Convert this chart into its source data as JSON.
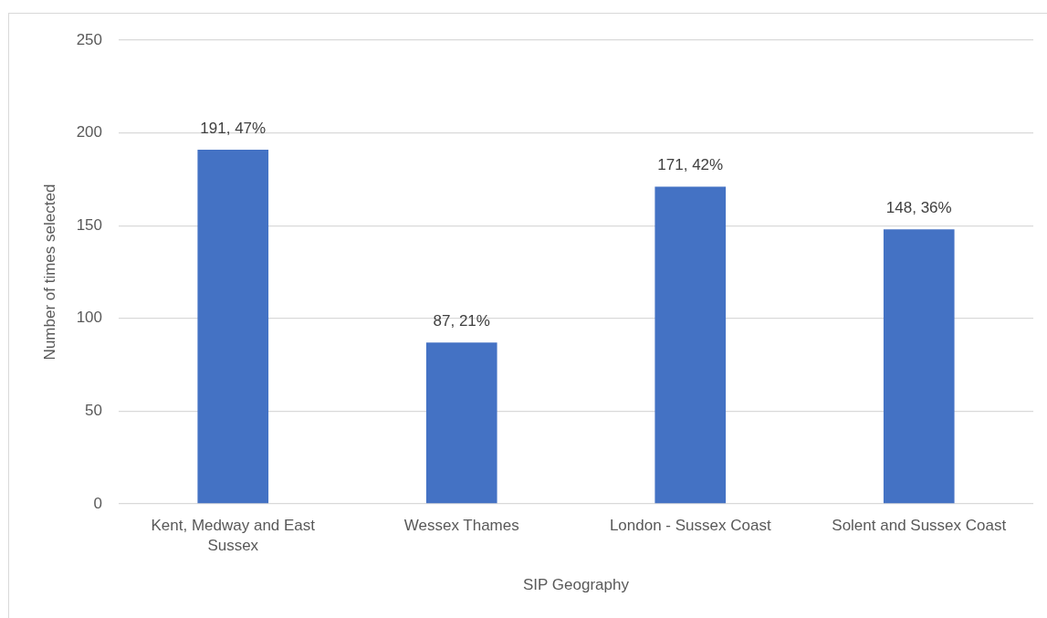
{
  "chart_data": {
    "type": "bar",
    "xlabel": "SIP Geography",
    "ylabel": "Number of times selected",
    "categories": [
      "Kent, Medway and East Sussex",
      "Wessex Thames",
      "London - Sussex Coast",
      "Solent and Sussex Coast"
    ],
    "values": [
      191,
      87,
      171,
      148
    ],
    "color": "#4472c4",
    "value_labels": [
      "191, 47%",
      "87, 21%",
      "171, 42%",
      "148, 36%"
    ],
    "ylim": [
      0,
      250
    ],
    "yticks": [
      0,
      50,
      100,
      150,
      200,
      250
    ],
    "grid": "y"
  }
}
